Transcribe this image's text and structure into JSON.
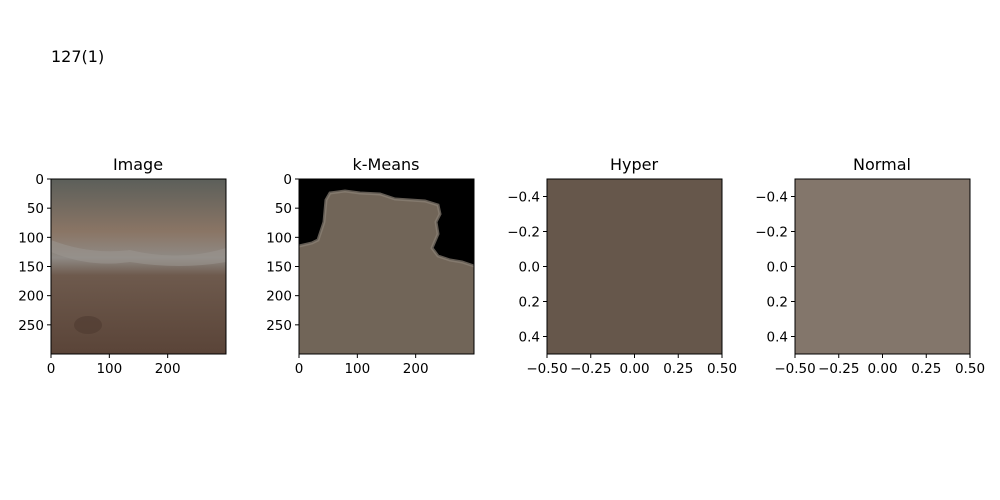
{
  "suptitle": "127(1)",
  "chart_data": [
    {
      "type": "image",
      "title": "Image",
      "xticks": [
        0,
        100,
        200
      ],
      "yticks": [
        0,
        50,
        100,
        150,
        200,
        250
      ],
      "xlim": [
        0,
        300
      ],
      "ylim": [
        300,
        0
      ],
      "colors": {
        "top": "#5c5f5a",
        "mid": "#8a7565",
        "band": "#8f8a85",
        "lower": "#6e5a4d",
        "bottom": "#5a4438"
      }
    },
    {
      "type": "image",
      "title": "k-Means",
      "xticks": [
        0,
        100,
        200
      ],
      "yticks": [
        0,
        50,
        100,
        150,
        200,
        250
      ],
      "xlim": [
        0,
        300
      ],
      "ylim": [
        300,
        0
      ],
      "colors": {
        "background": "#000000",
        "fill": "#716558",
        "edge": "#8c8176"
      }
    },
    {
      "type": "image",
      "title": "Hyper",
      "xticks": [
        -0.5,
        -0.25,
        0.0,
        0.25,
        0.5
      ],
      "xticklabels": [
        "−0.50",
        "−0.25",
        "0.00",
        "0.25",
        "0.50"
      ],
      "yticks": [
        -0.4,
        -0.2,
        0.0,
        0.2,
        0.4
      ],
      "yticklabels": [
        "−0.4",
        "−0.2",
        "0.0",
        "0.2",
        "0.4"
      ],
      "xlim": [
        -0.5,
        0.5
      ],
      "ylim": [
        0.5,
        -0.5
      ],
      "colors": {
        "fill": "#66574b"
      }
    },
    {
      "type": "image",
      "title": "Normal",
      "xticks": [
        -0.5,
        -0.25,
        0.0,
        0.25,
        0.5
      ],
      "xticklabels": [
        "−0.50",
        "−0.25",
        "0.00",
        "0.25",
        "0.50"
      ],
      "yticks": [
        -0.4,
        -0.2,
        0.0,
        0.2,
        0.4
      ],
      "yticklabels": [
        "−0.4",
        "−0.2",
        "0.0",
        "0.2",
        "0.4"
      ],
      "xlim": [
        -0.5,
        0.5
      ],
      "ylim": [
        0.5,
        -0.5
      ],
      "colors": {
        "fill": "#83766b"
      }
    }
  ]
}
